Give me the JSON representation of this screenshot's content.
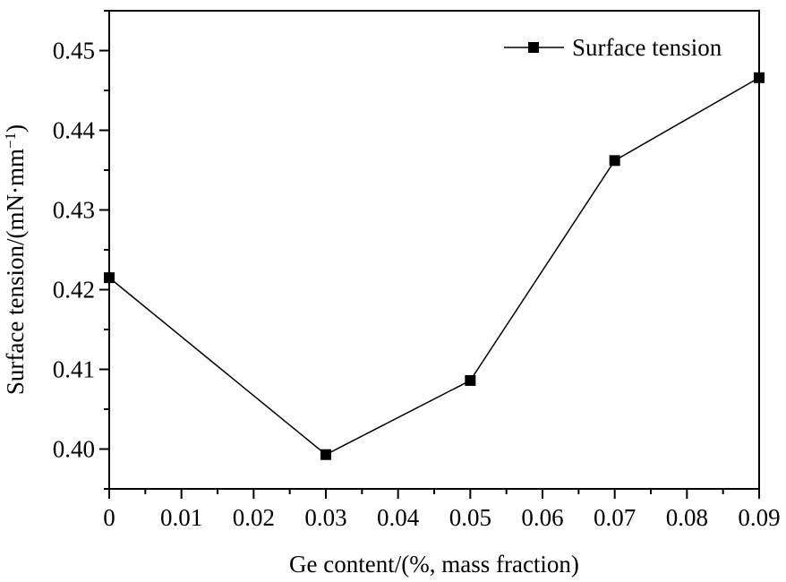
{
  "chart_data": {
    "type": "line",
    "title": "",
    "xlabel": "Ge content/(%, mass fraction)",
    "ylabel_main": "Surface tension/(mN·mm",
    "ylabel_sup": "−1",
    "ylabel_close": ")",
    "xlim": [
      0,
      0.09
    ],
    "ylim": [
      0.395,
      0.455
    ],
    "x_ticks": [
      0,
      0.01,
      0.02,
      0.03,
      0.04,
      0.05,
      0.06,
      0.07,
      0.08,
      0.09
    ],
    "x_tick_labels": [
      "0",
      "0.01",
      "0.02",
      "0.03",
      "0.04",
      "0.05",
      "0.06",
      "0.07",
      "0.08",
      "0.09"
    ],
    "y_ticks": [
      0.4,
      0.41,
      0.42,
      0.43,
      0.44,
      0.45
    ],
    "y_tick_labels": [
      "0.40",
      "0.41",
      "0.42",
      "0.43",
      "0.44",
      "0.45"
    ],
    "grid": false,
    "legend_position": "top-right",
    "series": [
      {
        "name": "Surface tension",
        "marker": "square",
        "color": "#000000",
        "x": [
          0,
          0.03,
          0.05,
          0.07,
          0.09
        ],
        "y": [
          0.4215,
          0.3993,
          0.4086,
          0.4362,
          0.4466
        ]
      }
    ]
  }
}
